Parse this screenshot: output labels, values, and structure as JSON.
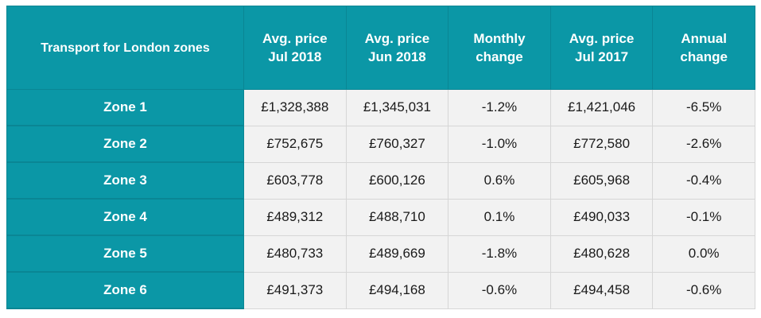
{
  "table": {
    "header": {
      "zone_col": "Transport for London zones",
      "columns": [
        {
          "line1": "Avg. price",
          "line2": "Jul 2018"
        },
        {
          "line1": "Avg. price",
          "line2": "Jun 2018"
        },
        {
          "line1": "Monthly",
          "line2": "change"
        },
        {
          "line1": "Avg. price",
          "line2": "Jul 2017"
        },
        {
          "line1": "Annual",
          "line2": "change"
        }
      ]
    },
    "rows": [
      {
        "zone": "Zone 1",
        "cells": [
          "£1,328,388",
          "£1,345,031",
          "-1.2%",
          "£1,421,046",
          "-6.5%"
        ]
      },
      {
        "zone": "Zone 2",
        "cells": [
          "£752,675",
          "£760,327",
          "-1.0%",
          "£772,580",
          "-2.6%"
        ]
      },
      {
        "zone": "Zone 3",
        "cells": [
          "£603,778",
          "£600,126",
          "0.6%",
          "£605,968",
          "-0.4%"
        ]
      },
      {
        "zone": "Zone 4",
        "cells": [
          "£489,312",
          "£488,710",
          "0.1%",
          "£490,033",
          "-0.1%"
        ]
      },
      {
        "zone": "Zone 5",
        "cells": [
          "£480,733",
          "£489,669",
          "-1.8%",
          "£480,628",
          "0.0%"
        ]
      },
      {
        "zone": "Zone 6",
        "cells": [
          "£491,373",
          "£494,168",
          "-0.6%",
          "£494,458",
          "-0.6%"
        ]
      }
    ],
    "colors": {
      "header_bg": "#0b97a6",
      "cell_bg": "#f2f2f2",
      "header_text": "#ffffff"
    }
  }
}
